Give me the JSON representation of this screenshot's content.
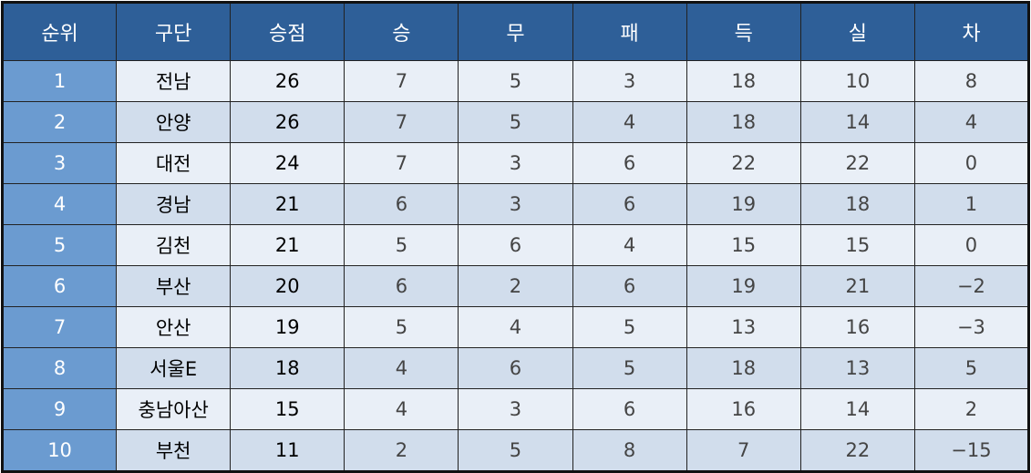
{
  "headers": [
    "순위",
    "구단",
    "승점",
    "승",
    "무",
    "패",
    "득",
    "실",
    "차"
  ],
  "rows": [
    [
      "1",
      "전남",
      "26",
      "7",
      "5",
      "3",
      "18",
      "10",
      "8"
    ],
    [
      "2",
      "안양",
      "26",
      "7",
      "5",
      "4",
      "18",
      "14",
      "4"
    ],
    [
      "3",
      "대전",
      "24",
      "7",
      "3",
      "6",
      "22",
      "22",
      "0"
    ],
    [
      "4",
      "경남",
      "21",
      "6",
      "3",
      "6",
      "19",
      "18",
      "1"
    ],
    [
      "5",
      "김천",
      "21",
      "5",
      "6",
      "4",
      "15",
      "15",
      "0"
    ],
    [
      "6",
      "부산",
      "20",
      "6",
      "2",
      "6",
      "19",
      "21",
      "−2"
    ],
    [
      "7",
      "안산",
      "19",
      "5",
      "4",
      "5",
      "13",
      "16",
      "−3"
    ],
    [
      "8",
      "서울E",
      "18",
      "4",
      "6",
      "5",
      "18",
      "13",
      "5"
    ],
    [
      "9",
      "충남아산",
      "15",
      "4",
      "3",
      "6",
      "16",
      "14",
      "2"
    ],
    [
      "10",
      "부천",
      "11",
      "2",
      "5",
      "8",
      "7",
      "22",
      "−15"
    ]
  ],
  "colors": {
    "header": "#2e5f98",
    "rank": "#6b9bd0",
    "row_odd": "#e9eff7",
    "row_even": "#d1ddec"
  }
}
